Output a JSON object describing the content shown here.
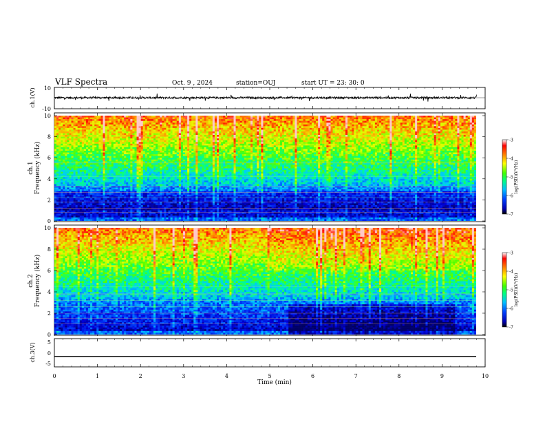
{
  "header": {
    "title": "VLF Spectra",
    "date": "Oct. 9 , 2024",
    "station": "station=OUJ",
    "start_time": "start UT = 23: 30: 0"
  },
  "chart_data": [
    {
      "type": "line",
      "panel": "ch1-waveform",
      "ylabel": "ch.1(V)",
      "ylim": [
        -10,
        10
      ],
      "yticks": [
        "10",
        "-10"
      ],
      "xlim": [
        0,
        10
      ]
    },
    {
      "type": "heatmap",
      "panel": "ch1-spectrogram",
      "ylabel": "ch.1\nFrequency (kHz)",
      "ylabel_line1": "ch.1",
      "ylabel_line2": "Frequency (kHz)",
      "ylim": [
        0,
        10
      ],
      "yticks": [
        "0",
        "2",
        "4",
        "6",
        "8",
        "10"
      ],
      "xlim": [
        0,
        9.8
      ],
      "colorbar": {
        "label": "log(PSD)(V²/Hz)",
        "range": [
          -7,
          -3
        ],
        "ticks": [
          "-3",
          "-4",
          "-5",
          "-6",
          "-7"
        ]
      }
    },
    {
      "type": "heatmap",
      "panel": "ch2-spectrogram",
      "ylabel_line1": "ch.2",
      "ylabel_line2": "Frequency (kHz)",
      "ylim": [
        0,
        10
      ],
      "yticks": [
        "0",
        "2",
        "4",
        "6",
        "8",
        "10"
      ],
      "xlim": [
        0,
        9.8
      ],
      "colorbar": {
        "label": "log(PSD)(V²/Hz)",
        "range": [
          -7,
          -3
        ],
        "ticks": [
          "-3",
          "-4",
          "-5",
          "-6",
          "-7"
        ]
      }
    },
    {
      "type": "line",
      "panel": "ch3-waveform",
      "ylabel": "ch.3(V)",
      "ylim": [
        -5,
        5
      ],
      "yticks": [
        "5",
        "0",
        "-5"
      ],
      "constant_value": -1.5,
      "xlim": [
        0,
        10
      ]
    }
  ],
  "xaxis": {
    "label": "Time (min)",
    "range": [
      0,
      10
    ],
    "ticks": [
      "0",
      "1",
      "2",
      "3",
      "4",
      "5",
      "6",
      "7",
      "8",
      "9",
      "10"
    ]
  }
}
